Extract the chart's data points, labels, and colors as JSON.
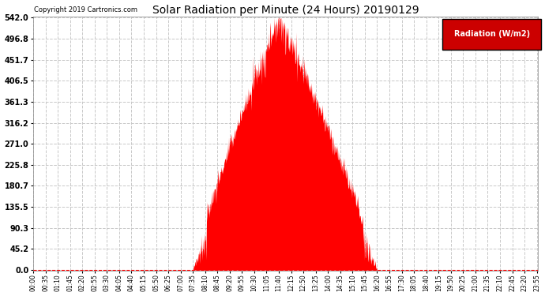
{
  "title": "Solar Radiation per Minute (24 Hours) 20190129",
  "copyright_text": "Copyright 2019 Cartronics.com",
  "legend_label": "Radiation (W/m2)",
  "fill_color": "#FF0000",
  "background_color": "#FFFFFF",
  "grid_color": "#C8C8C8",
  "dashed_zero_color": "#FF0000",
  "yticks": [
    0.0,
    45.2,
    90.3,
    135.5,
    180.7,
    225.8,
    271.0,
    316.2,
    361.3,
    406.5,
    451.7,
    496.8,
    542.0
  ],
  "ymax": 542.0,
  "ymin": 0.0,
  "sunrise_minute": 455,
  "sunset_minute": 980,
  "peak_value": 542.0,
  "peak_minute": 700,
  "total_minutes": 1440,
  "tick_interval": 35,
  "figwidth": 6.9,
  "figheight": 3.75,
  "dpi": 100
}
